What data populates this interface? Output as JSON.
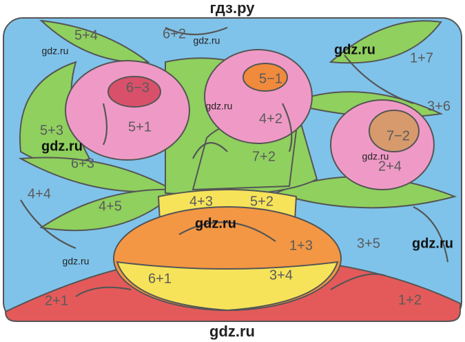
{
  "header": "гдз.ру",
  "footer": "gdz.ru",
  "expressions": [
    "5+4",
    "6+2",
    "1+7",
    "6−3",
    "5−1",
    "3+6",
    "5+1",
    "4+2",
    "7−2",
    "5+3",
    "6+3",
    "7+2",
    "2+4",
    "4+4",
    "4+5",
    "4+3",
    "5+2",
    "1+3",
    "3+5",
    "6+1",
    "3+4",
    "2+1",
    "1+2"
  ],
  "watermarks": [
    "gdz.ru",
    "gdz.ru",
    "gdz.ru",
    "gdz.ru",
    "gdz.ru",
    "gdz.ru",
    "gdz.ru",
    "gdz.ru",
    "gdz.ru"
  ]
}
